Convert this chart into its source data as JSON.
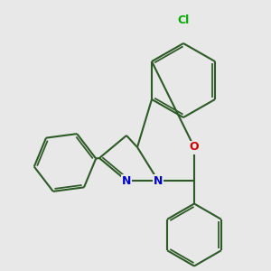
{
  "bg_color": "#e8e8e8",
  "bond_color": "#2d5a27",
  "bond_color_dark": "#404040",
  "bond_width": 1.5,
  "atom_colors": {
    "N": "#0000cc",
    "O": "#cc0000",
    "Cl": "#00aa00"
  },
  "benzene_color": "#2d5a27",
  "pyraz_color": "#2d5a27",
  "fused_color": "#2d5a27"
}
